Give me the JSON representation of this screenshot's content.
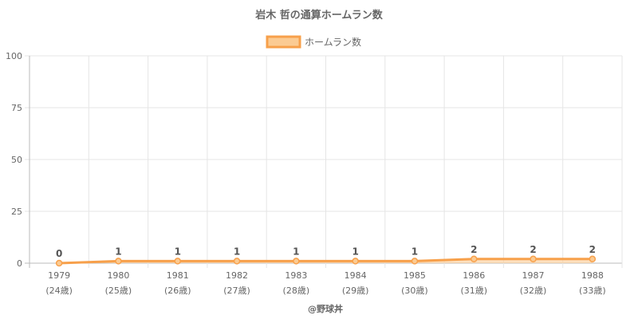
{
  "chart_data": {
    "type": "area",
    "title": "岩木 哲の通算ホームラン数",
    "legend": {
      "label": "ホームラン数",
      "position": "top"
    },
    "categories": [
      "1979",
      "1980",
      "1981",
      "1982",
      "1983",
      "1984",
      "1985",
      "1986",
      "1987",
      "1988"
    ],
    "age_labels": [
      "(24歳)",
      "(25歳)",
      "(26歳)",
      "(27歳)",
      "(28歳)",
      "(29歳)",
      "(30歳)",
      "(31歳)",
      "(32歳)",
      "(33歳)"
    ],
    "series": [
      {
        "name": "ホームラン数",
        "values": [
          0,
          1,
          1,
          1,
          1,
          1,
          1,
          2,
          2,
          2
        ]
      }
    ],
    "ylim": [
      0,
      100
    ],
    "yticks": [
      0,
      25,
      50,
      75,
      100
    ],
    "grid": true,
    "colors": {
      "line": "#f7a04b",
      "fill": "#fbcb93",
      "grid": "#e5e5e5",
      "axis": "#bbbbbb"
    }
  },
  "credit": "@野球丼"
}
